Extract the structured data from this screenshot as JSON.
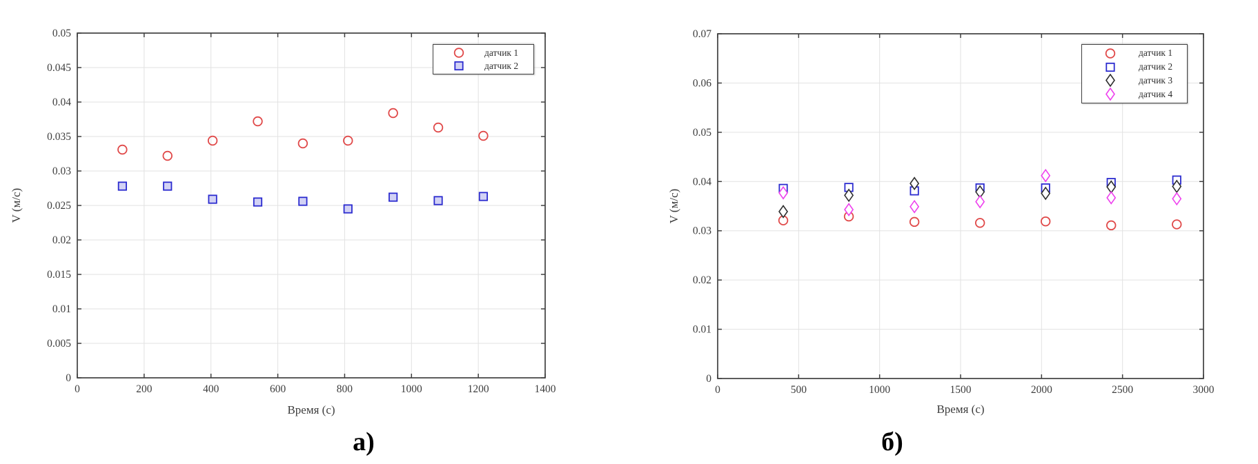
{
  "figure": {
    "background": "#ffffff",
    "grid_color": "#e2e2e2",
    "axis_color": "#3f3f3f",
    "tick_label_color": "#3d3d3d"
  },
  "chart_data": [
    {
      "type": "scatter",
      "caption": "а)",
      "xlabel": "Время (с)",
      "ylabel": "V (м/с)",
      "xlim": [
        0,
        1400
      ],
      "ylim": [
        0,
        0.05
      ],
      "xticks": [
        0,
        200,
        400,
        600,
        800,
        1000,
        1200,
        1400
      ],
      "xtick_labels": [
        "0",
        "200",
        "400",
        "600",
        "800",
        "1000",
        "1200",
        "1400"
      ],
      "yticks": [
        0,
        0.005,
        0.01,
        0.015,
        0.02,
        0.025,
        0.03,
        0.035,
        0.04,
        0.045,
        0.05
      ],
      "ytick_labels": [
        "0",
        "0.005",
        "0.01",
        "0.015",
        "0.02",
        "0.025",
        "0.03",
        "0.035",
        "0.04",
        "0.045",
        "0.05"
      ],
      "grid": true,
      "legend_position": "top-right-inside",
      "x": [
        135,
        270,
        405,
        540,
        675,
        810,
        945,
        1080,
        1215
      ],
      "series": [
        {
          "name": "датчик 1",
          "marker": "circle",
          "color": "#e04848",
          "fill": "none",
          "values": [
            0.0331,
            0.0322,
            0.0344,
            0.0372,
            0.034,
            0.0344,
            0.0384,
            0.0363,
            0.0351
          ]
        },
        {
          "name": "датчик 2",
          "marker": "square",
          "color": "#2b2bcf",
          "fill": "#d2d2f5",
          "values": [
            0.0278,
            0.0278,
            0.0259,
            0.0255,
            0.0256,
            0.0245,
            0.0262,
            0.0257,
            0.0263
          ]
        }
      ]
    },
    {
      "type": "scatter",
      "caption": "б)",
      "xlabel": "Время (с)",
      "ylabel": "V (м/с)",
      "xlim": [
        0,
        3000
      ],
      "ylim": [
        0,
        0.07
      ],
      "xticks": [
        0,
        500,
        1000,
        1500,
        2000,
        2500,
        3000
      ],
      "xtick_labels": [
        "0",
        "500",
        "1000",
        "1500",
        "2000",
        "2500",
        "3000"
      ],
      "yticks": [
        0,
        0.01,
        0.02,
        0.03,
        0.04,
        0.05,
        0.06,
        0.07
      ],
      "ytick_labels": [
        "0",
        "0.01",
        "0.02",
        "0.03",
        "0.04",
        "0.05",
        "0.06",
        "0.07"
      ],
      "grid": true,
      "legend_position": "top-right-inside",
      "x": [
        405,
        810,
        1215,
        1620,
        2025,
        2430,
        2835
      ],
      "series": [
        {
          "name": "датчик 1",
          "marker": "circle",
          "color": "#e04848",
          "fill": "none",
          "values": [
            0.0321,
            0.0329,
            0.0318,
            0.0316,
            0.0319,
            0.0311,
            0.0313
          ]
        },
        {
          "name": "датчик 2",
          "marker": "square",
          "color": "#2b2bcf",
          "fill": "#ffffff",
          "values": [
            0.0386,
            0.0388,
            0.0381,
            0.0387,
            0.0387,
            0.0398,
            0.0403
          ]
        },
        {
          "name": "датчик 3",
          "marker": "diamond",
          "color": "#2e2e2e",
          "fill": "#ffffff",
          "values": [
            0.0339,
            0.0372,
            0.0396,
            0.0379,
            0.0376,
            0.0389,
            0.039
          ]
        },
        {
          "name": "датчик 4",
          "marker": "diamond",
          "color": "#ee40ee",
          "fill": "#ffffff",
          "values": [
            0.0377,
            0.0343,
            0.0349,
            0.0359,
            0.0412,
            0.0367,
            0.0365
          ]
        }
      ]
    }
  ]
}
